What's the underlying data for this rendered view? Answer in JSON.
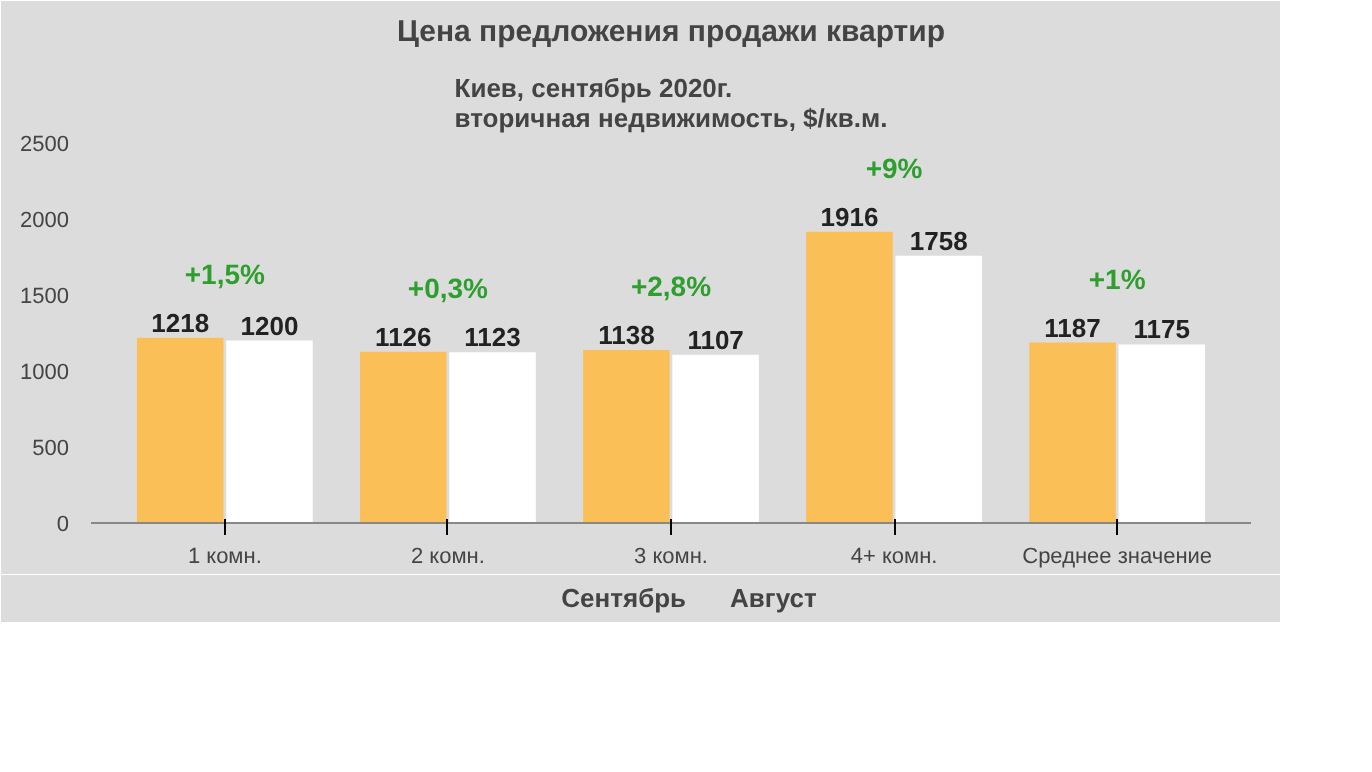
{
  "chart_data": {
    "type": "bar",
    "title": "Цена предложения продажи квартир",
    "subtitle": "Киев, сентябрь 2020г.\nвторичная недвижимость, $/кв.м.",
    "categories": [
      "1 комн.",
      "2 комн.",
      "3 комн.",
      "4+ комн.",
      "Среднее значение"
    ],
    "series": [
      {
        "name": "Сентябрь",
        "color": "#fbbf57",
        "values": [
          1218,
          1126,
          1138,
          1916,
          1187
        ]
      },
      {
        "name": "Август",
        "color": "#ffffff",
        "values": [
          1200,
          1123,
          1107,
          1758,
          1175
        ]
      }
    ],
    "ylim": [
      0,
      2500
    ],
    "yticks": [
      0,
      500,
      1000,
      1500,
      2000,
      2500
    ],
    "grid": false,
    "legend": "bottom",
    "data_labels": true,
    "annotations": [
      "+1,5%",
      "+0,3%",
      "+2,8%",
      "+9%",
      "+1%"
    ]
  }
}
